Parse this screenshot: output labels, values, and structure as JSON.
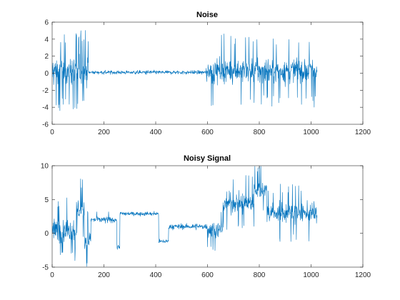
{
  "figure": {
    "background": "#ffffff",
    "axes_color": "#262626"
  },
  "chart_data": [
    {
      "type": "line",
      "title": "Noise",
      "xlabel": "",
      "ylabel": "",
      "xlim": [
        0,
        1200
      ],
      "ylim": [
        -6,
        6
      ],
      "xticks": [
        0,
        200,
        400,
        600,
        800,
        1000,
        1200
      ],
      "yticks": [
        -6,
        -4,
        -2,
        0,
        2,
        4,
        6
      ],
      "grid": false,
      "series": [
        {
          "color": "#0072BD",
          "segments": [
            {
              "x0": 1,
              "x1": 140,
              "mean": 0.3,
              "amp": 2.0,
              "spikes": 28
            },
            {
              "x0": 140,
              "x1": 595,
              "mean": 0.1,
              "amp": 0.28,
              "spikes": 0
            },
            {
              "x0": 595,
              "x1": 1024,
              "mean": 0.3,
              "amp": 1.8,
              "spikes": 36
            }
          ]
        }
      ]
    },
    {
      "type": "line",
      "title": "Noisy Signal",
      "xlabel": "",
      "ylabel": "",
      "xlim": [
        0,
        1200
      ],
      "ylim": [
        -5,
        10
      ],
      "xticks": [
        0,
        200,
        400,
        600,
        800,
        1000,
        1200
      ],
      "yticks": [
        -5,
        0,
        5,
        10
      ],
      "grid": false,
      "series": [
        {
          "color": "#0072BD",
          "segments": [
            {
              "x0": 1,
              "x1": 95,
              "mean": 0.5,
              "amp": 2.0,
              "spikes": 14
            },
            {
              "x0": 95,
              "x1": 125,
              "mean": 3.5,
              "amp": 2.0,
              "spikes": 6
            },
            {
              "x0": 125,
              "x1": 150,
              "mean": -1.0,
              "amp": 2.0,
              "spikes": 5
            },
            {
              "x0": 150,
              "x1": 250,
              "mean": 2.0,
              "amp": 0.6,
              "spikes": 2
            },
            {
              "x0": 250,
              "x1": 262,
              "mean": -2.0,
              "amp": 0.5,
              "spikes": 0
            },
            {
              "x0": 262,
              "x1": 412,
              "mean": 2.9,
              "amp": 0.4,
              "spikes": 0
            },
            {
              "x0": 412,
              "x1": 450,
              "mean": -1.2,
              "amp": 0.4,
              "spikes": 0
            },
            {
              "x0": 450,
              "x1": 600,
              "mean": 1.0,
              "amp": 0.5,
              "spikes": 0
            },
            {
              "x0": 600,
              "x1": 660,
              "mean": 0.5,
              "amp": 1.5,
              "spikes": 5
            },
            {
              "x0": 660,
              "x1": 780,
              "mean": 4.5,
              "amp": 1.8,
              "spikes": 12
            },
            {
              "x0": 780,
              "x1": 830,
              "mean": 6.5,
              "amp": 1.6,
              "spikes": 6
            },
            {
              "x0": 830,
              "x1": 1024,
              "mean": 3.0,
              "amp": 1.8,
              "spikes": 16
            }
          ]
        }
      ]
    }
  ]
}
